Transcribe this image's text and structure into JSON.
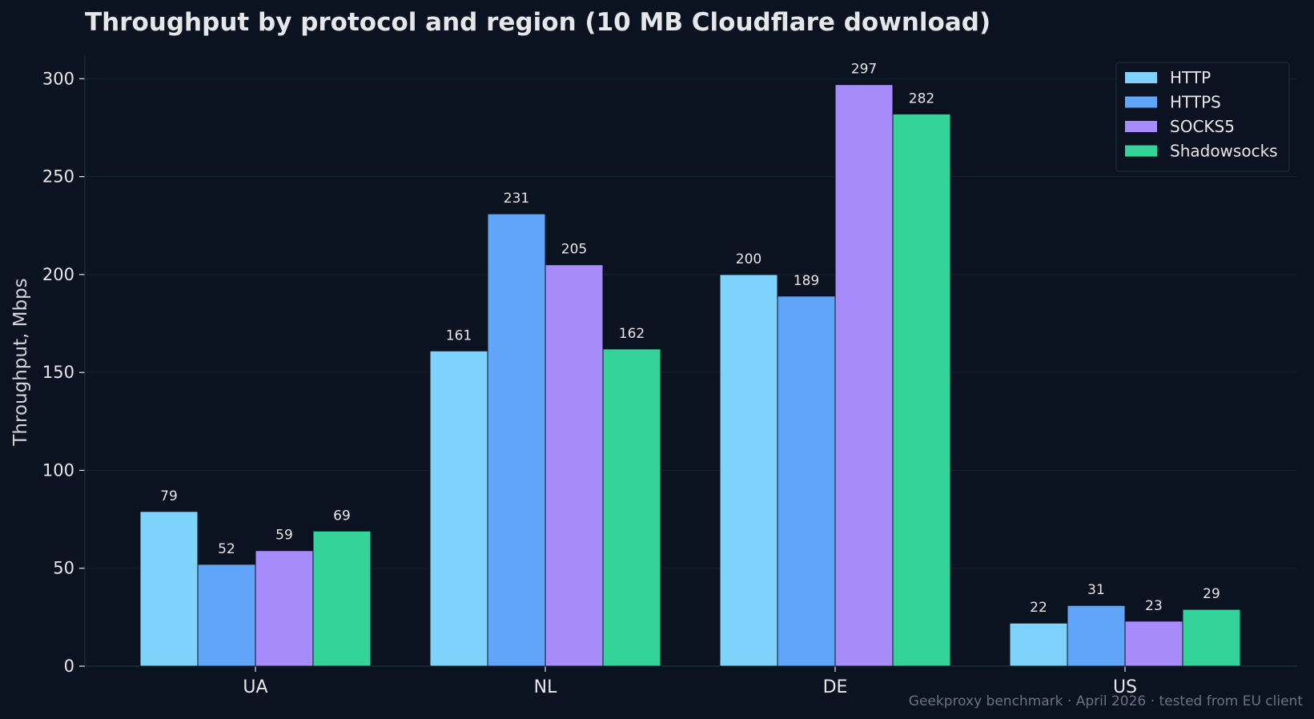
{
  "chart_data": {
    "type": "bar",
    "title": "Throughput by protocol and region (10 MB Cloudflare download)",
    "xlabel": "",
    "ylabel": "Throughput, Mbps",
    "categories": [
      "UA",
      "NL",
      "DE",
      "US"
    ],
    "series": [
      {
        "name": "HTTP",
        "color": "#7dd3fc",
        "values": [
          79,
          161,
          200,
          22
        ]
      },
      {
        "name": "HTTPS",
        "color": "#60a5fa",
        "values": [
          52,
          231,
          189,
          31
        ]
      },
      {
        "name": "SOCKS5",
        "color": "#a78bfa",
        "values": [
          59,
          205,
          297,
          23
        ]
      },
      {
        "name": "Shadowsocks",
        "color": "#34d399",
        "values": [
          69,
          162,
          282,
          29
        ]
      }
    ],
    "ylim": [
      0,
      312
    ],
    "yticks": [
      0,
      50,
      100,
      150,
      200,
      250,
      300
    ],
    "grid": true,
    "legend_position": "top-right",
    "footnote": "Geekproxy benchmark · April 2026 · tested from EU client"
  }
}
